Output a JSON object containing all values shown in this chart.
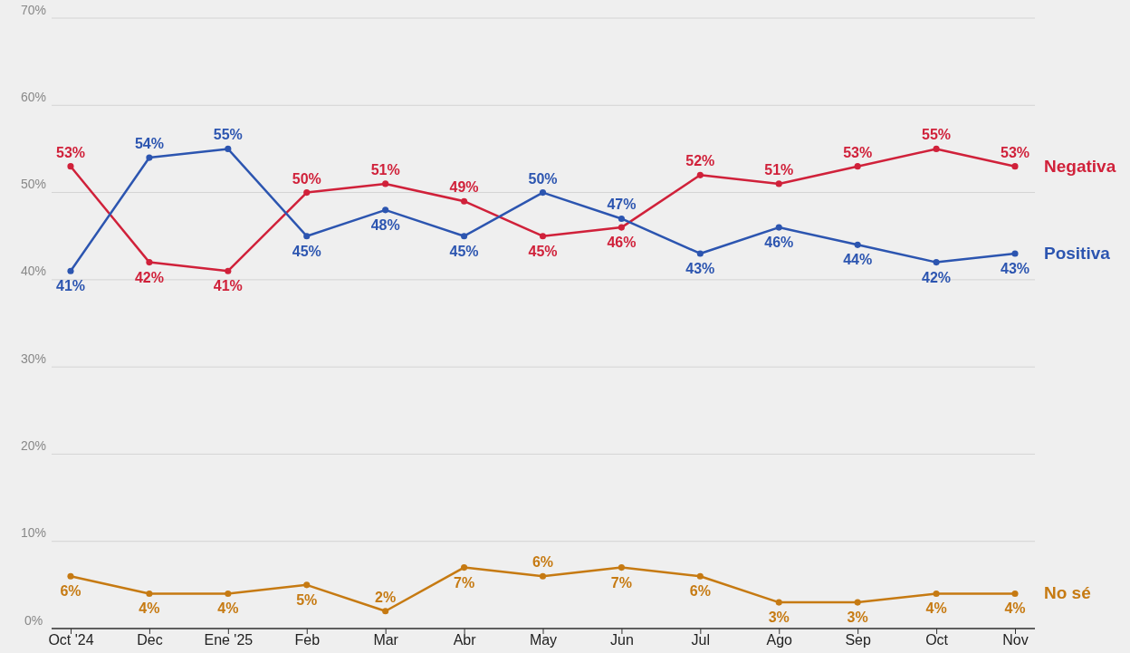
{
  "chart_data": {
    "type": "line",
    "categories": [
      "Oct '24",
      "Dec",
      "Ene '25",
      "Feb",
      "Mar",
      "Abr",
      "May",
      "Jun",
      "Jul",
      "Ago",
      "Sep",
      "Oct",
      "Nov"
    ],
    "series": [
      {
        "name": "Negativa",
        "color": "#d0213a",
        "values": [
          53,
          42,
          41,
          50,
          51,
          49,
          45,
          46,
          52,
          51,
          53,
          55,
          53
        ],
        "value_labels": [
          "53%",
          "42%",
          "41%",
          "50%",
          "51%",
          "49%",
          "45%",
          "46%",
          "52%",
          "51%",
          "53%",
          "55%",
          "53%"
        ]
      },
      {
        "name": "Positiva",
        "color": "#2c55b0",
        "values": [
          41,
          54,
          55,
          45,
          48,
          45,
          50,
          47,
          43,
          46,
          44,
          42,
          43
        ],
        "value_labels": [
          "41%",
          "54%",
          "55%",
          "45%",
          "48%",
          "45%",
          "50%",
          "47%",
          "43%",
          "46%",
          "44%",
          "42%",
          "43%"
        ]
      },
      {
        "name": "No sé",
        "color": "#c67a12",
        "values": [
          6,
          4,
          4,
          5,
          2,
          7,
          6,
          7,
          6,
          3,
          3,
          4,
          4
        ],
        "value_labels": [
          "6%",
          "4%",
          "4%",
          "5%",
          "2%",
          "7%",
          "6%",
          "7%",
          "6%",
          "3%",
          "3%",
          "4%",
          "4%"
        ]
      }
    ],
    "ylim": [
      0,
      70
    ],
    "yticks": [
      {
        "value": 0,
        "label": "0%"
      },
      {
        "value": 10,
        "label": "10%"
      },
      {
        "value": 20,
        "label": "20%"
      },
      {
        "value": 30,
        "label": "30%"
      },
      {
        "value": 40,
        "label": "40%"
      },
      {
        "value": 50,
        "label": "50%"
      },
      {
        "value": 60,
        "label": "60%"
      },
      {
        "value": 70,
        "label": "70%"
      }
    ],
    "grid": "y",
    "legend": "right",
    "marker": "circle",
    "line_style": "solid"
  }
}
